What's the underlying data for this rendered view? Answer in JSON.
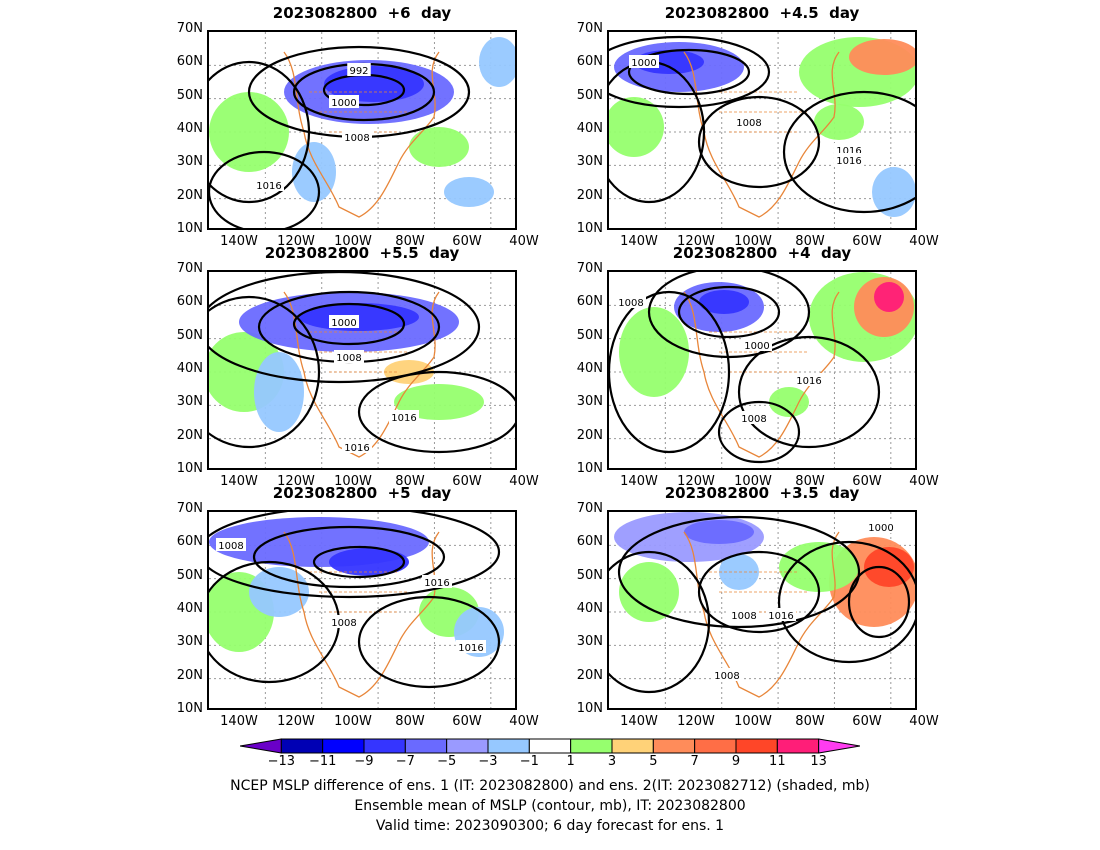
{
  "panels": [
    {
      "title": "2023082800  +6  day",
      "contour_labels": [
        "992",
        "1000",
        "1008",
        "1016"
      ]
    },
    {
      "title": "2023082800  +4.5  day",
      "contour_labels": [
        "1000",
        "1008",
        "1016",
        "1016"
      ]
    },
    {
      "title": "2023082800  +5.5  day",
      "contour_labels": [
        "1000",
        "1008",
        "1016",
        "1016"
      ]
    },
    {
      "title": "2023082800  +4  day",
      "contour_labels": [
        "1008",
        "1000",
        "1016",
        "1008"
      ]
    },
    {
      "title": "2023082800  +5  day",
      "contour_labels": [
        "1008",
        "1016",
        "1008",
        "1016"
      ]
    },
    {
      "title": "2023082800  +3.5  day",
      "contour_labels": [
        "1000",
        "1008",
        "1016",
        "1008"
      ]
    }
  ],
  "lat_ticks": [
    "70N",
    "60N",
    "50N",
    "40N",
    "30N",
    "20N",
    "10N"
  ],
  "lon_ticks": [
    "140W",
    "120W",
    "100W",
    "80W",
    "60W",
    "40W"
  ],
  "colorbar": {
    "labels": [
      "−13",
      "−11",
      "−9",
      "−7",
      "−5",
      "−3",
      "−1",
      "1",
      "3",
      "5",
      "7",
      "9",
      "11",
      "13"
    ],
    "colors": [
      "#6a00c8",
      "#0000b4",
      "#0000ff",
      "#3535ff",
      "#6a6aff",
      "#9a9aff",
      "#96c8ff",
      "#ffffff",
      "#96ff6e",
      "#ffd278",
      "#ff8c5a",
      "#ff6e46",
      "#ff4628",
      "#ff1e78",
      "#ff3cf0"
    ]
  },
  "caption": [
    "NCEP MSLP difference of ens. 1 (IT: 2023082800) and ens. 2(IT: 2023082712) (shaded, mb)",
    "Ensemble mean of MSLP (contour, mb), IT: 2023082800",
    "Valid time: 2023090300; 6 day forecast for ens. 1"
  ]
}
